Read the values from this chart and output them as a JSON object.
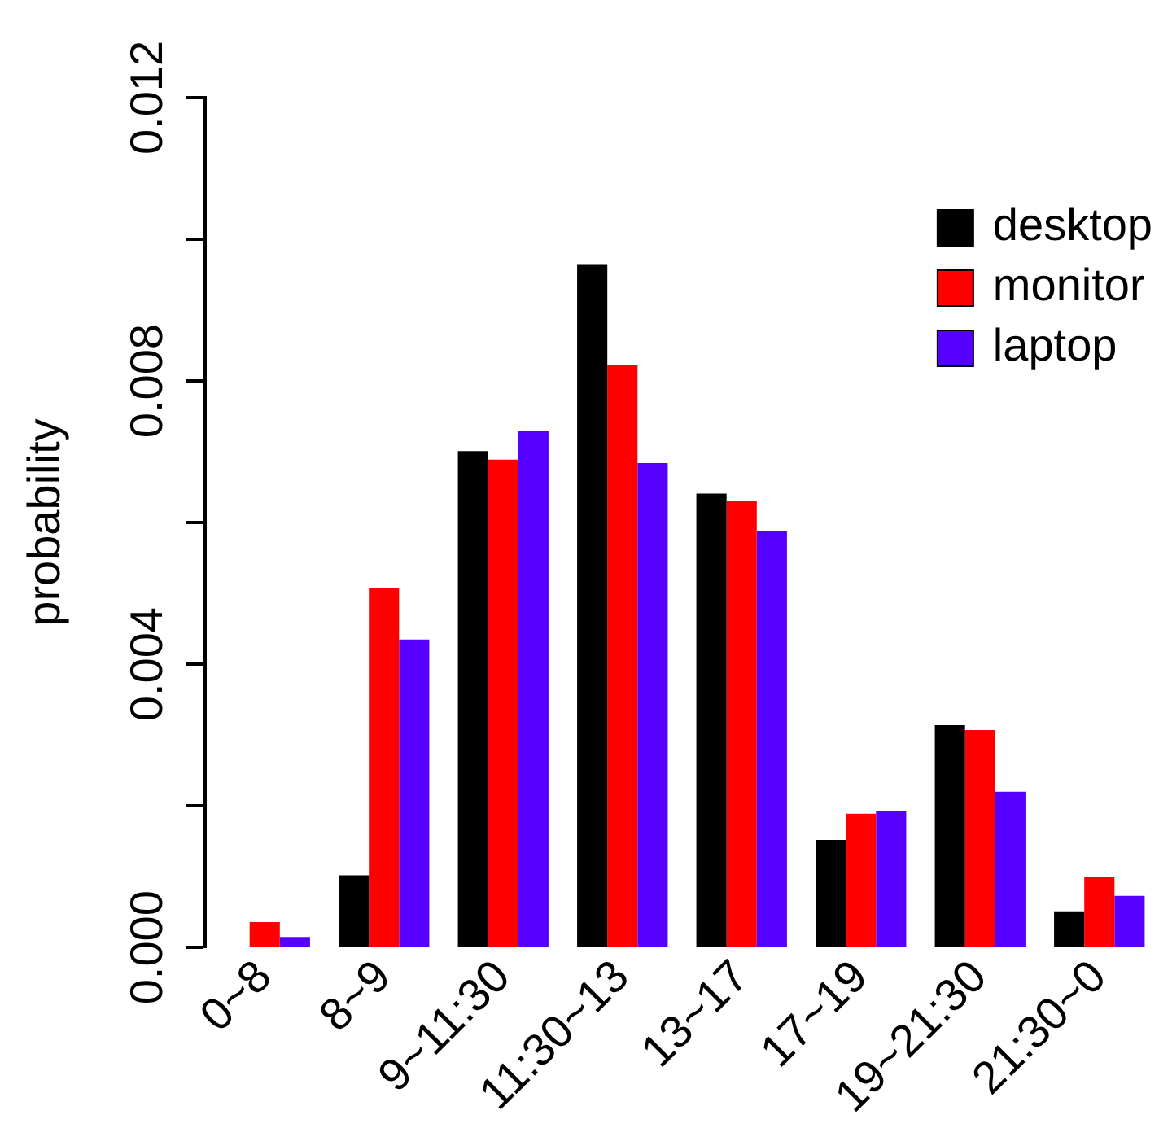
{
  "chart_data": {
    "type": "bar",
    "ylabel": "probability",
    "categories": [
      "0~8",
      "8~9",
      "9~11:30",
      "11:30~13",
      "13~17",
      "17~19",
      "19~21:30",
      "21:30~0"
    ],
    "series": [
      {
        "name": "desktop",
        "color": "#000000",
        "values": [
          0,
          0.00102,
          0.00701,
          0.00965,
          0.00641,
          0.00152,
          0.00314,
          0.00051
        ]
      },
      {
        "name": "monitor",
        "color": "#ff0000",
        "values": [
          0.00036,
          0.00508,
          0.00689,
          0.00822,
          0.00631,
          0.00189,
          0.00307,
          0.00099
        ]
      },
      {
        "name": "laptop",
        "color": "#5500ff",
        "values": [
          0.00015,
          0.00435,
          0.0073,
          0.00684,
          0.00588,
          0.00193,
          0.0022,
          0.00073
        ]
      }
    ],
    "ylim": [
      0,
      0.012
    ],
    "yticks": [
      {
        "value": 0,
        "label": "0.000"
      },
      {
        "value": 0.002,
        "label": null
      },
      {
        "value": 0.004,
        "label": "0.004"
      },
      {
        "value": 0.006,
        "label": null
      },
      {
        "value": 0.008,
        "label": "0.008"
      },
      {
        "value": 0.01,
        "label": null
      },
      {
        "value": 0.012,
        "label": "0.012"
      }
    ],
    "grid": false,
    "legend": "top right"
  }
}
